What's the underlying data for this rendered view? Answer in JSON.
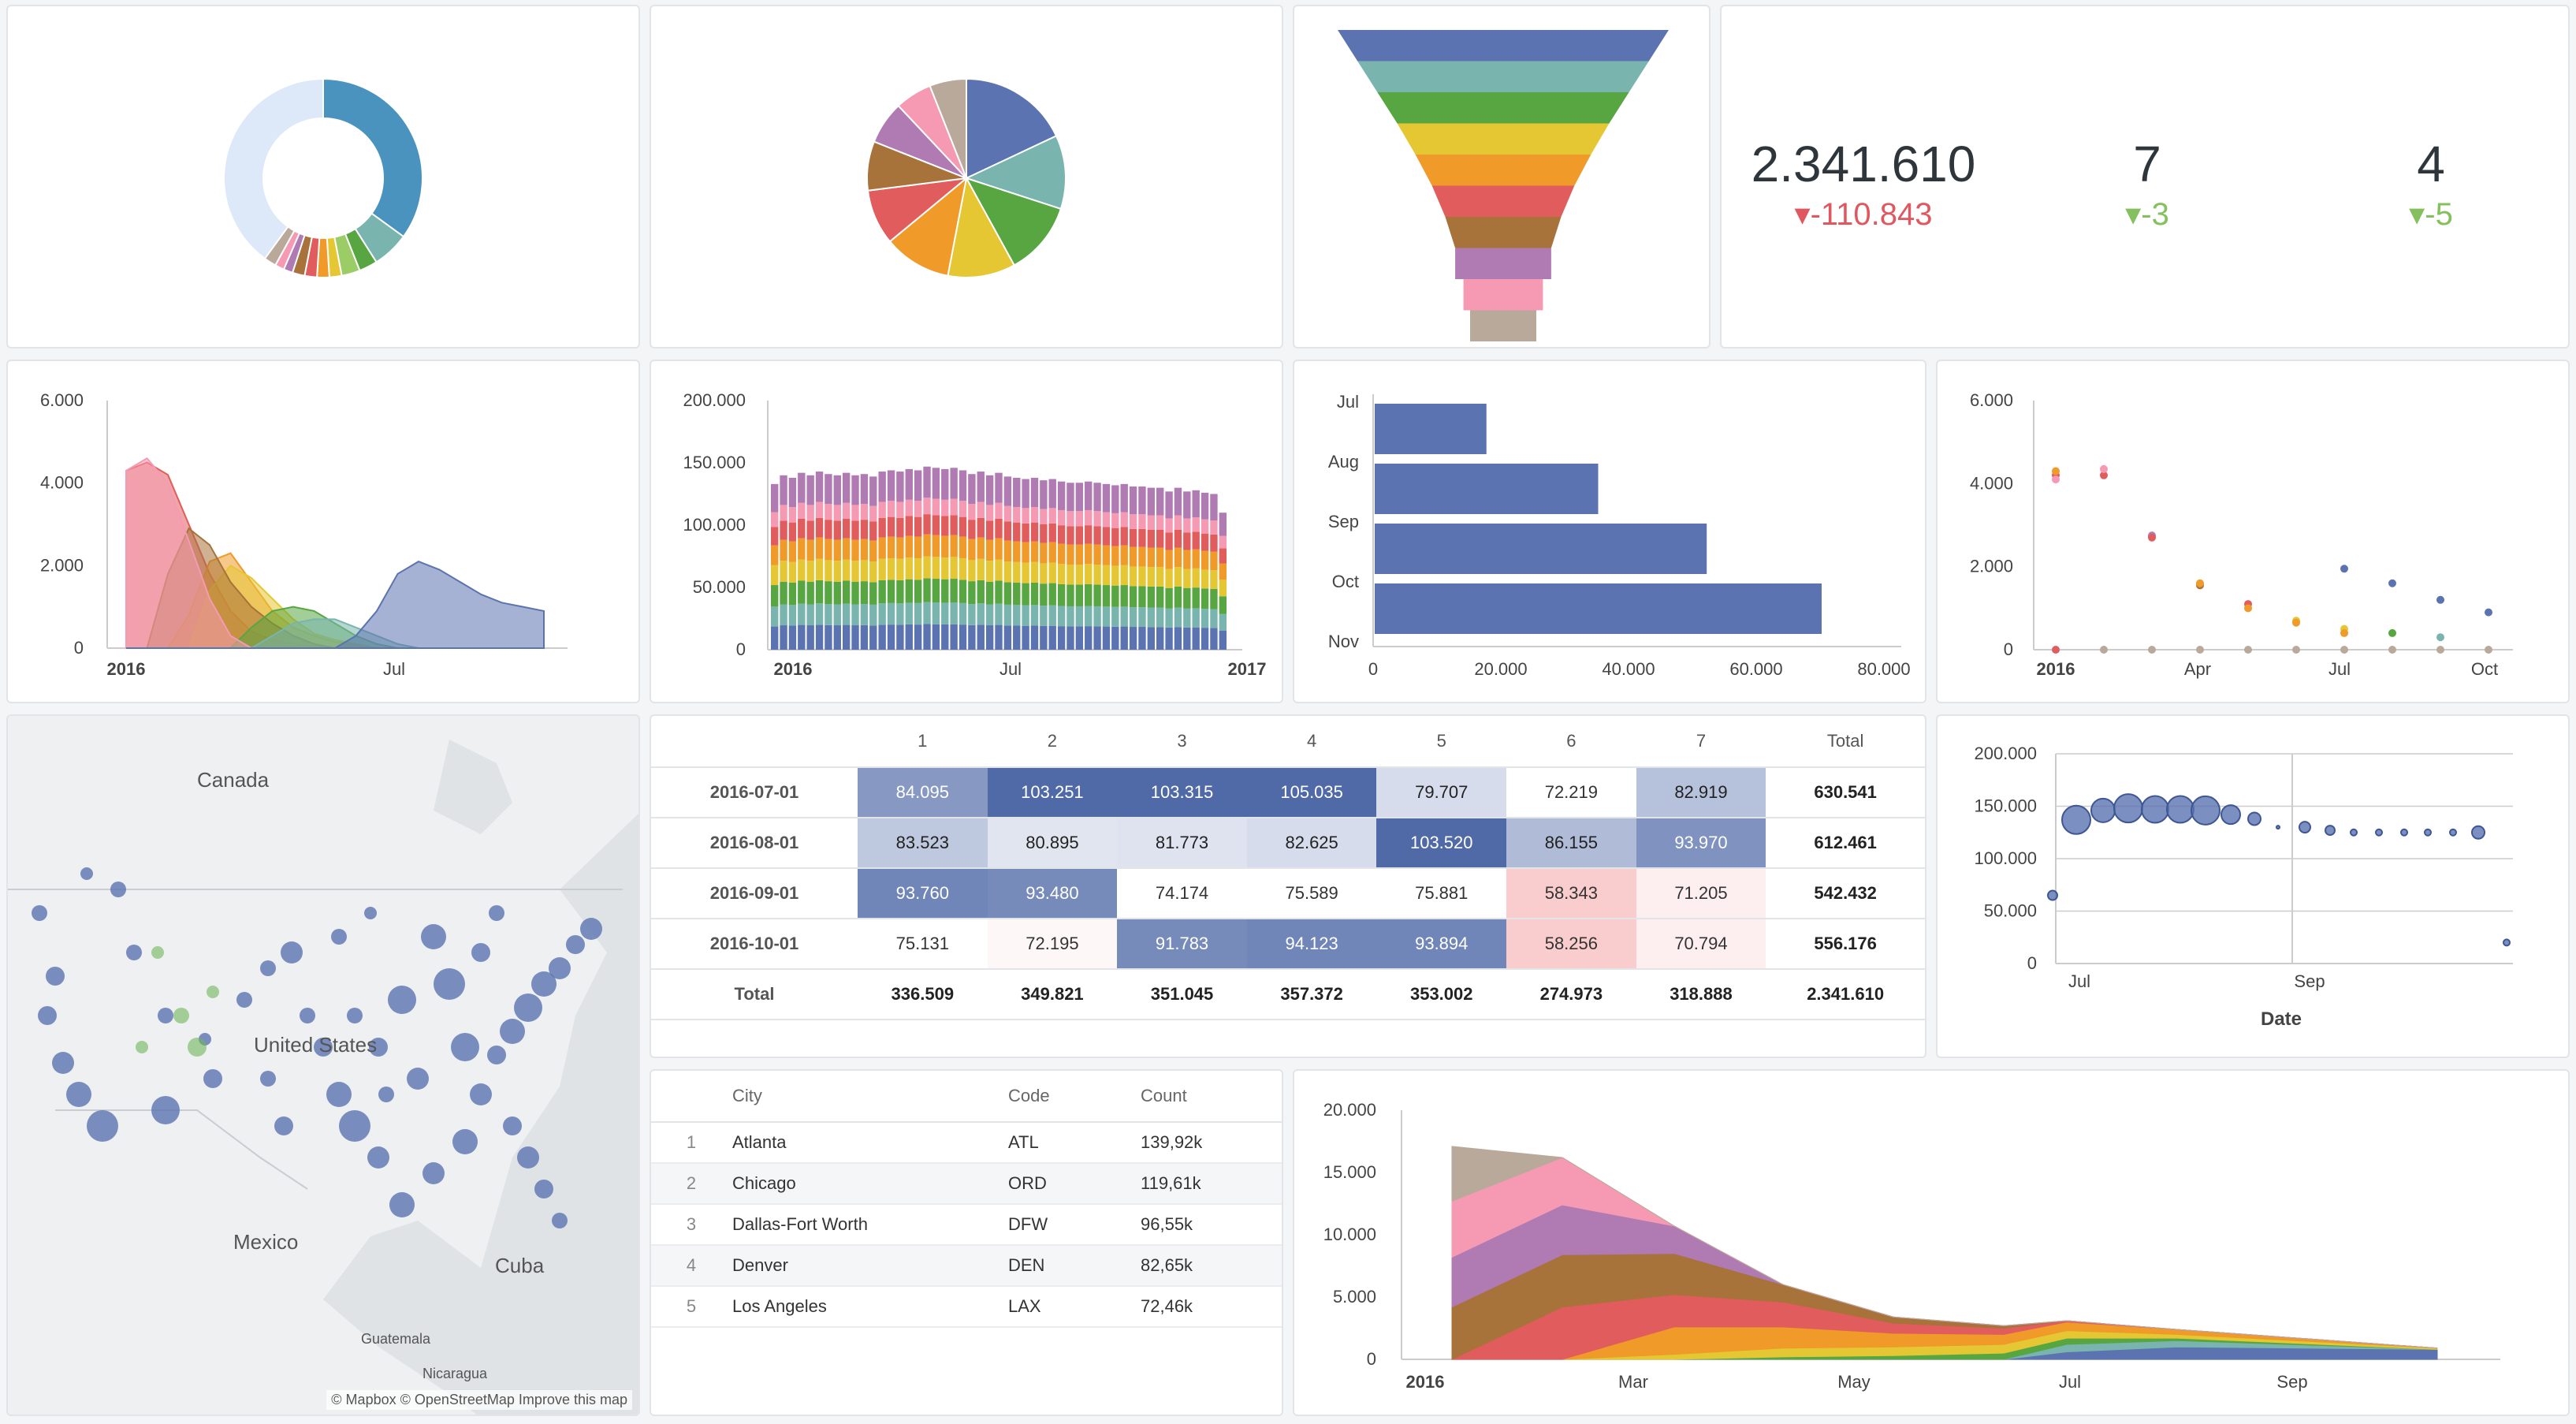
{
  "colors": {
    "blue": "#5b73b1",
    "teal": "#79b5ae",
    "green": "#57a642",
    "yellow": "#e5c734",
    "orange": "#ef9a29",
    "red": "#e15c5c",
    "brown": "#a8723b",
    "purple": "#b07ab3",
    "pink": "#f59ab2",
    "tan": "#b9a99a",
    "light": "#dde9f8",
    "steel": "#4b93bf"
  },
  "big_numbers": [
    {
      "value": "2.341.610",
      "change": "-110.843",
      "direction": "down-red"
    },
    {
      "value": "7",
      "change": "-3",
      "direction": "down-green"
    },
    {
      "value": "4",
      "change": "-5",
      "direction": "down-green"
    }
  ],
  "chart_data": [
    {
      "type": "pie",
      "variant": "donut",
      "values": [
        35,
        6,
        3,
        3,
        2,
        2,
        2,
        2,
        1.5,
        1.5,
        2,
        40
      ],
      "colors": [
        "#4b93bf",
        "#79b5ae",
        "#57a642",
        "#9ccc65",
        "#e5c734",
        "#ef9a29",
        "#e15c5c",
        "#a8723b",
        "#b07ab3",
        "#f59ab2",
        "#b9a99a",
        "#dde9f8"
      ]
    },
    {
      "type": "pie",
      "values": [
        18,
        12,
        12,
        11,
        11,
        9,
        8,
        7,
        6,
        6
      ],
      "colors": [
        "#5b73b1",
        "#79b5ae",
        "#57a642",
        "#e5c734",
        "#ef9a29",
        "#e15c5c",
        "#a8723b",
        "#b07ab3",
        "#f59ab2",
        "#b9a99a"
      ]
    },
    {
      "type": "funnel",
      "values": [
        100,
        88,
        76,
        64,
        53,
        43,
        35,
        29,
        24,
        20
      ],
      "colors": [
        "#5b73b1",
        "#79b5ae",
        "#57a642",
        "#e5c734",
        "#ef9a29",
        "#e15c5c",
        "#a8723b",
        "#b07ab3",
        "#f59ab2",
        "#b9a99a"
      ]
    },
    {
      "type": "area",
      "x_ticks": [
        "2016",
        "Jul"
      ],
      "y_ticks": [
        "6.000",
        "4.000",
        "2.000",
        "0"
      ],
      "ylim": [
        0,
        6000
      ],
      "series": [
        {
          "color": "#e15c5c",
          "values": [
            4300,
            4500,
            4200,
            3000,
            1800,
            900,
            400,
            200,
            100,
            50,
            0,
            0,
            0,
            0,
            0,
            0,
            0,
            0,
            0,
            0,
            0
          ]
        },
        {
          "color": "#ef9a29",
          "values": [
            0,
            0,
            0,
            800,
            2100,
            2300,
            1600,
            900,
            500,
            300,
            150,
            80,
            0,
            0,
            0,
            0,
            0,
            0,
            0,
            0,
            0
          ]
        },
        {
          "color": "#e5c734",
          "values": [
            0,
            0,
            0,
            0,
            1400,
            2000,
            1700,
            1200,
            700,
            350,
            200,
            100,
            0,
            0,
            0,
            0,
            0,
            0,
            0,
            0,
            0
          ]
        },
        {
          "color": "#a8723b",
          "values": [
            0,
            0,
            1800,
            2900,
            2500,
            1600,
            1000,
            600,
            300,
            100,
            0,
            0,
            0,
            0,
            0,
            0,
            0,
            0,
            0,
            0,
            0
          ]
        },
        {
          "color": "#57a642",
          "values": [
            0,
            0,
            0,
            0,
            0,
            0,
            500,
            900,
            1000,
            900,
            600,
            300,
            100,
            0,
            0,
            0,
            0,
            0,
            0,
            0,
            0
          ]
        },
        {
          "color": "#79b5ae",
          "values": [
            0,
            0,
            0,
            0,
            0,
            0,
            0,
            300,
            600,
            700,
            700,
            500,
            300,
            100,
            0,
            0,
            0,
            0,
            0,
            0,
            0
          ]
        },
        {
          "color": "#f59ab2",
          "values": [
            4300,
            4600,
            4000,
            2600,
            1200,
            300,
            0,
            0,
            0,
            0,
            0,
            0,
            0,
            0,
            0,
            0,
            0,
            0,
            0,
            0,
            0
          ]
        },
        {
          "color": "#5b73b1",
          "values": [
            0,
            0,
            0,
            0,
            0,
            0,
            0,
            0,
            0,
            0,
            0,
            300,
            900,
            1800,
            2100,
            1900,
            1600,
            1300,
            1100,
            1000,
            900
          ]
        }
      ]
    },
    {
      "type": "bar",
      "variant": "stacked",
      "x_ticks": [
        "2016",
        "Jul",
        "2017"
      ],
      "y_ticks": [
        "200.000",
        "150.000",
        "100.000",
        "50.000",
        "0"
      ],
      "ylim": [
        0,
        200000
      ],
      "totals": [
        133000,
        140000,
        138000,
        142000,
        140000,
        143000,
        141000,
        140000,
        142000,
        140000,
        141000,
        139000,
        143000,
        144000,
        143000,
        145000,
        144000,
        147000,
        146000,
        145000,
        146000,
        144000,
        141000,
        143000,
        140000,
        142000,
        139000,
        138000,
        137000,
        138000,
        136000,
        137000,
        135000,
        134000,
        134000,
        135000,
        134000,
        133000,
        132000,
        133000,
        131000,
        131000,
        130000,
        130000,
        127000,
        130000,
        127000,
        128000,
        126000,
        125000,
        110000
      ],
      "shares": [
        0.14,
        0.12,
        0.13,
        0.12,
        0.12,
        0.11,
        0.09,
        0.17
      ],
      "colors": [
        "#5b73b1",
        "#79b5ae",
        "#57a642",
        "#e5c734",
        "#ef9a29",
        "#e15c5c",
        "#f59ab2",
        "#b07ab3"
      ]
    },
    {
      "type": "bar",
      "variant": "horizontal",
      "categories": [
        "Jul",
        "Aug",
        "Sep",
        "Oct",
        "Nov"
      ],
      "values": [
        17500,
        35000,
        52000,
        70000,
        0
      ],
      "x_ticks": [
        "0",
        "20.000",
        "40.000",
        "60.000",
        "80.000"
      ],
      "xlim": [
        0,
        80000
      ],
      "color": "#5b73b1"
    },
    {
      "type": "scatter",
      "x_ticks": [
        "2016",
        "Apr",
        "Jul",
        "Oct"
      ],
      "y_ticks": [
        "6.000",
        "4.000",
        "2.000",
        "0"
      ],
      "ylim": [
        0,
        6000
      ],
      "points": [
        [
          0,
          4200,
          "#e15c5c"
        ],
        [
          0,
          4300,
          "#ef9a29"
        ],
        [
          0,
          4100,
          "#f59ab2"
        ],
        [
          1,
          4200,
          "#e15c5c"
        ],
        [
          1,
          4350,
          "#f59ab2"
        ],
        [
          2,
          2750,
          "#b07ab3"
        ],
        [
          2,
          2700,
          "#e15c5c"
        ],
        [
          3,
          1550,
          "#a8723b"
        ],
        [
          3,
          1600,
          "#ef9a29"
        ],
        [
          4,
          1100,
          "#e15c5c"
        ],
        [
          4,
          1000,
          "#ef9a29"
        ],
        [
          5,
          700,
          "#e5c734"
        ],
        [
          5,
          650,
          "#ef9a29"
        ],
        [
          6,
          1950,
          "#5b73b1"
        ],
        [
          6,
          500,
          "#e5c734"
        ],
        [
          6,
          400,
          "#ef9a29"
        ],
        [
          7,
          1600,
          "#5b73b1"
        ],
        [
          7,
          400,
          "#57a642"
        ],
        [
          8,
          1200,
          "#5b73b1"
        ],
        [
          8,
          300,
          "#79b5ae"
        ],
        [
          9,
          900,
          "#5b73b1"
        ],
        [
          0,
          0,
          "#e15c5c"
        ],
        [
          1,
          0,
          "#b9a99a"
        ],
        [
          2,
          0,
          "#b9a99a"
        ],
        [
          3,
          0,
          "#b9a99a"
        ],
        [
          4,
          0,
          "#b9a99a"
        ],
        [
          5,
          0,
          "#b9a99a"
        ],
        [
          6,
          0,
          "#b9a99a"
        ],
        [
          7,
          0,
          "#b9a99a"
        ],
        [
          8,
          0,
          "#b9a99a"
        ],
        [
          9,
          0,
          "#b9a99a"
        ]
      ]
    },
    {
      "type": "scatter",
      "variant": "bubble",
      "xlabel": "Date",
      "x_ticks": [
        "Jul",
        "Sep"
      ],
      "y_ticks": [
        "200.000",
        "150.000",
        "100.000",
        "50.000",
        "0"
      ],
      "ylim": [
        0,
        200000
      ],
      "points": [
        [
          0,
          65000,
          6
        ],
        [
          1,
          137000,
          18
        ],
        [
          2,
          146000,
          15
        ],
        [
          3,
          148000,
          18
        ],
        [
          4,
          147000,
          17
        ],
        [
          5,
          147000,
          17
        ],
        [
          6,
          146000,
          18
        ],
        [
          7,
          142000,
          12
        ],
        [
          8,
          138000,
          8
        ],
        [
          9,
          130000,
          2
        ],
        [
          10,
          130000,
          7
        ],
        [
          11,
          127000,
          6
        ],
        [
          12,
          125000,
          4
        ],
        [
          13,
          125000,
          4
        ],
        [
          14,
          125000,
          4
        ],
        [
          15,
          125000,
          4
        ],
        [
          16,
          125000,
          4
        ],
        [
          17,
          125000,
          8
        ],
        [
          18,
          20000,
          4
        ]
      ],
      "color": "#5b73b1"
    },
    {
      "type": "area",
      "variant": "stacked",
      "x_ticks": [
        "2016",
        "Mar",
        "May",
        "Jul",
        "Sep"
      ],
      "y_ticks": [
        "20.000",
        "15.000",
        "10.000",
        "5.000",
        "0"
      ],
      "ylim": [
        0,
        20000
      ],
      "series": [
        {
          "color": "#5b73b1",
          "values": [
            0,
            0,
            0,
            0,
            0,
            0,
            600,
            1000,
            800
          ]
        },
        {
          "color": "#79b5ae",
          "values": [
            0,
            0,
            0,
            0,
            0,
            0,
            600,
            500,
            0
          ]
        },
        {
          "color": "#57a642",
          "values": [
            0,
            0,
            0,
            200,
            300,
            500,
            500,
            200,
            0
          ]
        },
        {
          "color": "#e5c734",
          "values": [
            0,
            0,
            400,
            700,
            700,
            700,
            600,
            300,
            100
          ]
        },
        {
          "color": "#ef9a29",
          "values": [
            0,
            0,
            2200,
            1700,
            1100,
            800,
            700,
            400,
            0
          ]
        },
        {
          "color": "#e15c5c",
          "values": [
            0,
            4200,
            2600,
            2000,
            800,
            500,
            100,
            0,
            0
          ]
        },
        {
          "color": "#a8723b",
          "values": [
            4200,
            4200,
            3300,
            1400,
            500,
            200,
            0,
            0,
            0
          ]
        },
        {
          "color": "#b07ab3",
          "values": [
            4000,
            4000,
            2200,
            0,
            0,
            0,
            0,
            0,
            0
          ]
        },
        {
          "color": "#f59ab2",
          "values": [
            4500,
            3800,
            0,
            0,
            0,
            0,
            0,
            0,
            0
          ]
        },
        {
          "color": "#b9a99a",
          "values": [
            4400,
            0,
            0,
            0,
            0,
            0,
            0,
            0,
            0
          ]
        }
      ]
    }
  ],
  "pivot": {
    "columns": [
      "",
      "1",
      "2",
      "3",
      "4",
      "5",
      "6",
      "7",
      "Total"
    ],
    "rows": [
      {
        "label": "2016-07-01",
        "cells": [
          "84.095",
          "103.251",
          "103.315",
          "105.035",
          "79.707",
          "72.219",
          "82.919"
        ],
        "total": "630.541",
        "shade": [
          0.65,
          1,
          1,
          1,
          0.15,
          0.0,
          0.35
        ]
      },
      {
        "label": "2016-08-01",
        "cells": [
          "83.523",
          "80.895",
          "81.773",
          "82.625",
          "103.520",
          "86.155",
          "93.970"
        ],
        "total": "612.461",
        "shade": [
          0.3,
          0.08,
          0.1,
          0.15,
          1,
          0.4,
          0.7
        ]
      },
      {
        "label": "2016-09-01",
        "cells": [
          "93.760",
          "93.480",
          "74.174",
          "75.589",
          "75.881",
          "58.343",
          "71.205"
        ],
        "total": "542.432",
        "shade": [
          0.8,
          0.75,
          0.0,
          0.0,
          0.0,
          -0.6,
          -0.15
        ]
      },
      {
        "label": "2016-10-01",
        "cells": [
          "75.131",
          "72.195",
          "91.783",
          "94.123",
          "93.894",
          "58.256",
          "70.794"
        ],
        "total": "556.176",
        "shade": [
          0.0,
          -0.05,
          0.75,
          0.8,
          0.8,
          -0.6,
          -0.15
        ]
      }
    ],
    "totals_label": "Total",
    "totals": [
      "336.509",
      "349.821",
      "351.045",
      "357.372",
      "353.002",
      "274.973",
      "318.888",
      "2.341.610"
    ]
  },
  "flights": {
    "headers": [
      "",
      "City",
      "Code",
      "Count"
    ],
    "rows": [
      [
        "1",
        "Atlanta",
        "ATL",
        "139,92k"
      ],
      [
        "2",
        "Chicago",
        "ORD",
        "119,61k"
      ],
      [
        "3",
        "Dallas-Fort Worth",
        "DFW",
        "96,55k"
      ],
      [
        "4",
        "Denver",
        "DEN",
        "82,65k"
      ],
      [
        "5",
        "Los Angeles",
        "LAX",
        "72,46k"
      ]
    ]
  },
  "map": {
    "labels": [
      "Canada",
      "United States",
      "Mexico",
      "Cuba",
      "Guatemala",
      "Nicaragua"
    ],
    "attribution": "© Mapbox © OpenStreetMap  Improve this map"
  }
}
